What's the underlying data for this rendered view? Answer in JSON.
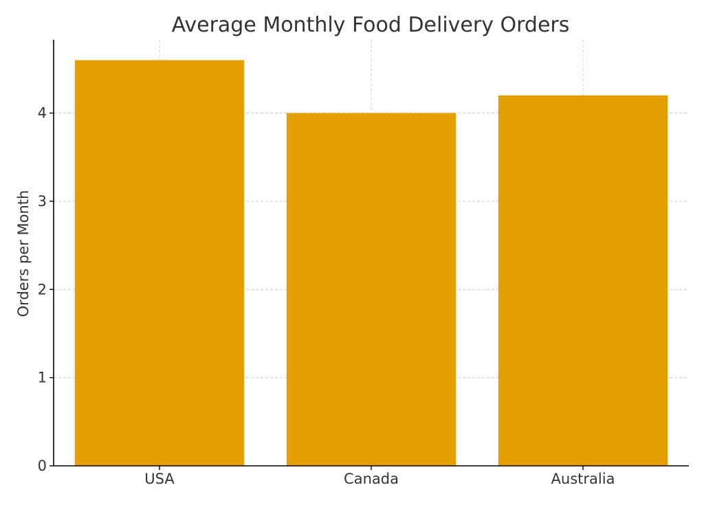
{
  "chart_data": {
    "type": "bar",
    "title": "Average Monthly Food Delivery Orders",
    "xlabel": "",
    "ylabel": "Orders per Month",
    "categories": [
      "USA",
      "Canada",
      "Australia"
    ],
    "values": [
      4.6,
      4.0,
      4.2
    ],
    "ylim": [
      0,
      4.83
    ],
    "yticks": [
      0,
      1,
      2,
      3,
      4
    ],
    "grid": true,
    "legend": "none",
    "colors": {
      "bar": "#E69F00",
      "grid": "#cccccc",
      "axis": "#000000",
      "text": "#333333"
    }
  }
}
